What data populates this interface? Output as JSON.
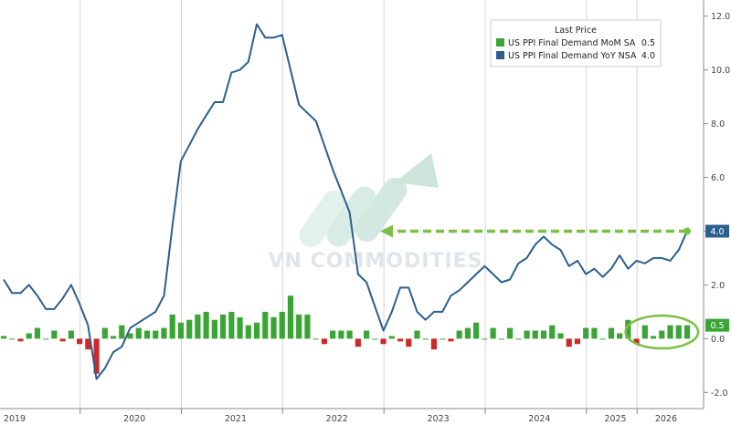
{
  "chart_data": {
    "type": "bar+line",
    "x_tick_labels": [
      "2019",
      "2020",
      "2021",
      "2022",
      "2023",
      "2024",
      "2025",
      "2026"
    ],
    "y_ticks": [
      -2.0,
      0.0,
      2.0,
      4.0,
      6.0,
      8.0,
      10.0,
      12.0
    ],
    "y_tick_labels": [
      "-2.0",
      "0.0",
      "2.0",
      "4.0",
      "6.0",
      "8.0",
      "10.0",
      "12.0"
    ],
    "ylim": [
      -2.6,
      12.6
    ],
    "grid": "vertical",
    "legend": {
      "title": "Last Price",
      "placement": "top-right",
      "entries": [
        {
          "label": "US PPI Final Demand MoM SA",
          "value": "0.5",
          "color": "#3aa535"
        },
        {
          "label": "US PPI Final Demand YoY NSA",
          "value": "4.0",
          "color": "#2b5f8e"
        }
      ]
    },
    "last_value_tags": [
      {
        "value": 4.0,
        "label": "4.0",
        "color": "#2b5f8e"
      },
      {
        "value": 0.5,
        "label": "0.5",
        "color": "#3aa535"
      }
    ],
    "series": [
      {
        "name": "US PPI Final Demand YoY NSA",
        "kind": "line",
        "color": "#2b5f8e",
        "values": [
          2.2,
          1.7,
          1.7,
          2.0,
          1.6,
          1.1,
          1.1,
          1.5,
          2.0,
          1.3,
          0.5,
          -1.5,
          -1.1,
          -0.5,
          -0.3,
          0.4,
          0.6,
          0.8,
          1.0,
          1.6,
          4.2,
          6.6,
          7.2,
          7.8,
          8.3,
          8.8,
          8.8,
          9.9,
          10.0,
          10.3,
          11.7,
          11.2,
          11.2,
          11.3,
          10.0,
          8.7,
          8.4,
          8.1,
          7.2,
          6.3,
          5.5,
          4.7,
          2.4,
          2.1,
          1.2,
          0.3,
          1.0,
          1.9,
          1.9,
          1.0,
          0.7,
          1.0,
          1.0,
          1.6,
          1.8,
          2.1,
          2.4,
          2.7,
          2.4,
          2.1,
          2.2,
          2.8,
          3.0,
          3.5,
          3.8,
          3.5,
          3.3,
          2.7,
          2.9,
          2.4,
          2.6,
          2.3,
          2.6,
          3.1,
          2.6,
          2.9,
          2.8,
          3.0,
          3.0,
          2.9,
          3.3,
          4.0
        ]
      },
      {
        "name": "US PPI Final Demand MoM SA",
        "kind": "bar",
        "color_pos": "#3aa535",
        "color_neg": "#cc2a2a",
        "values": [
          0.1,
          0.0,
          -0.1,
          0.2,
          0.4,
          0.0,
          0.3,
          -0.1,
          0.3,
          -0.2,
          -0.4,
          -1.3,
          0.4,
          0.1,
          0.5,
          0.2,
          0.4,
          0.3,
          0.3,
          0.4,
          0.9,
          0.6,
          0.7,
          0.9,
          1.0,
          0.7,
          0.9,
          1.0,
          0.8,
          0.5,
          0.6,
          1.0,
          0.8,
          1.0,
          1.6,
          0.9,
          0.9,
          0.0,
          -0.2,
          0.3,
          0.3,
          0.3,
          -0.3,
          0.3,
          0.0,
          -0.2,
          0.1,
          -0.1,
          -0.3,
          0.3,
          0.0,
          -0.4,
          0.0,
          -0.1,
          0.3,
          0.4,
          0.6,
          0.0,
          0.4,
          0.0,
          0.4,
          0.0,
          0.3,
          0.3,
          0.3,
          0.5,
          0.2,
          -0.3,
          -0.2,
          0.4,
          0.4,
          0.0,
          0.4,
          0.2,
          0.7,
          -0.2,
          0.5,
          0.1,
          0.3,
          0.5,
          0.5,
          0.5
        ]
      }
    ],
    "annotations": [
      {
        "kind": "dashed-arrow",
        "color": "#7bc043",
        "from_value": 4.0
      },
      {
        "kind": "ellipse",
        "color": "#7bc043",
        "around": "latest MoM bars"
      }
    ]
  },
  "watermark": {
    "text": "VN COMMODITIES"
  }
}
